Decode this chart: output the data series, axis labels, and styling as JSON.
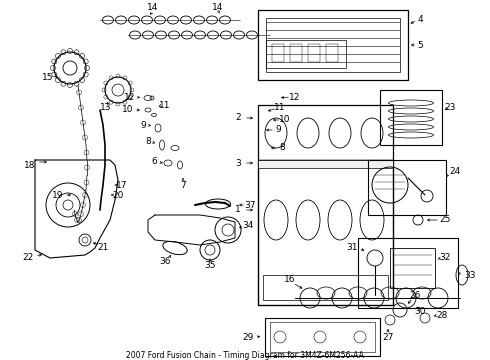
{
  "title": "2007 Ford Fusion Chain - Timing Diagram for 3M4Z-6M256-AA",
  "bg_color": "#ffffff",
  "line_color": "#000000",
  "font_size": 6.5
}
